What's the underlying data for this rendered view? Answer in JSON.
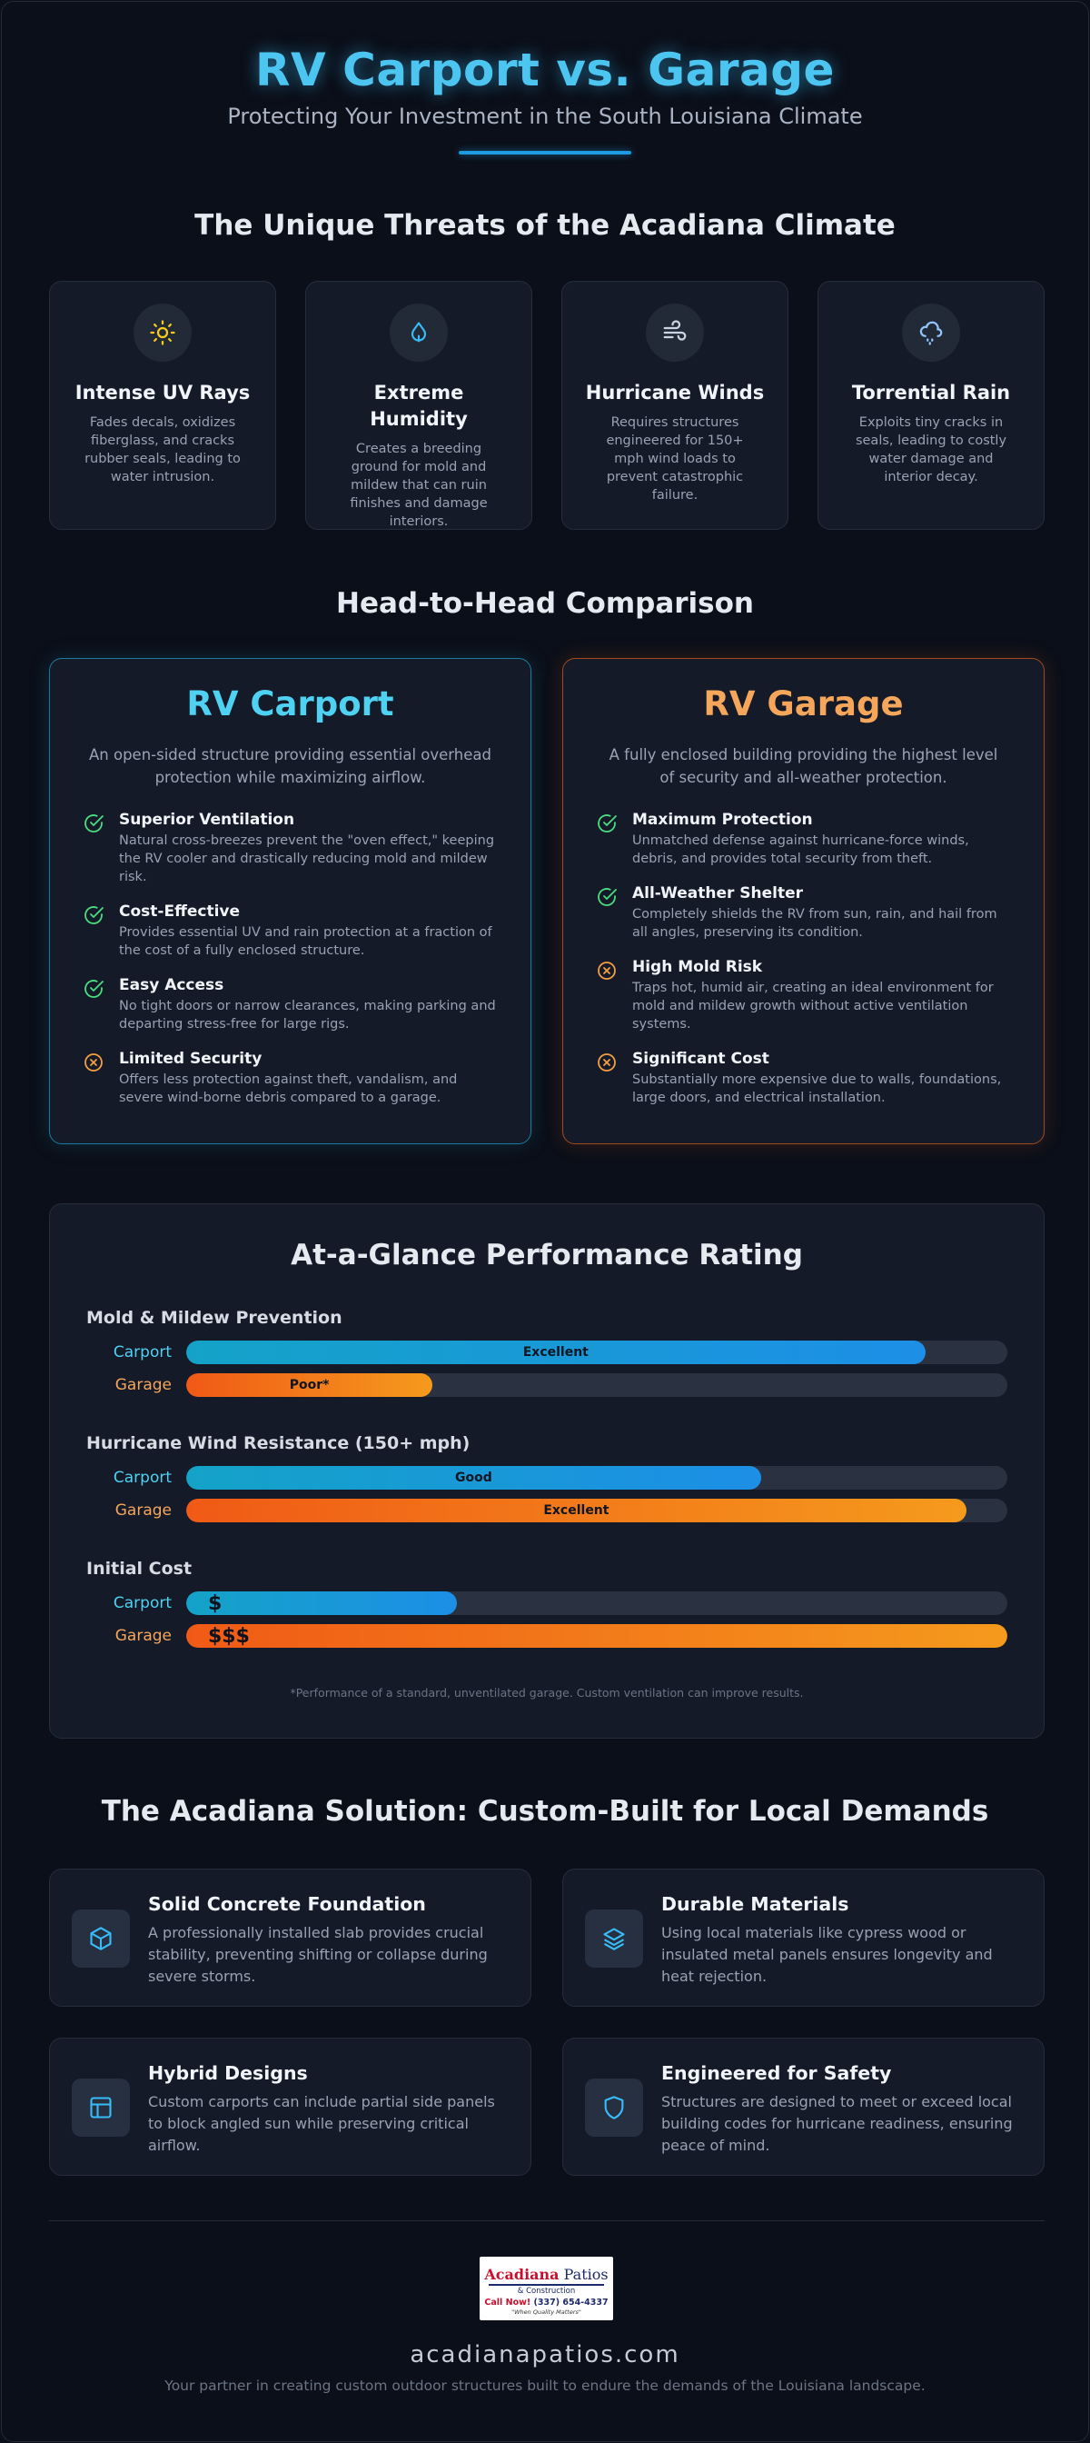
{
  "header": {
    "title": "RV Carport vs. Garage",
    "subtitle": "Protecting Your Investment in the South Louisiana Climate"
  },
  "threats": {
    "title": "The Unique Threats of the Acadiana Climate",
    "items": [
      {
        "icon": "sun-icon",
        "name": "Intense UV Rays",
        "desc": "Fades decals, oxidizes fiberglass, and cracks rubber seals, leading to water intrusion."
      },
      {
        "icon": "droplet-icon",
        "name": "Extreme Humidity",
        "desc": "Creates a breeding ground for mold and mildew that can ruin finishes and damage interiors."
      },
      {
        "icon": "wind-icon",
        "name": "Hurricane Winds",
        "desc": "Requires structures engineered for 150+ mph wind loads to prevent catastrophic failure."
      },
      {
        "icon": "rain-cloud-icon",
        "name": "Torrential Rain",
        "desc": "Exploits tiny cracks in seals, leading to costly water damage and interior decay."
      }
    ]
  },
  "comparison": {
    "title": "Head-to-Head Comparison",
    "carport": {
      "title": "RV Carport",
      "desc": "An open-sided structure providing essential overhead protection while maximizing airflow.",
      "items": [
        {
          "type": "pro",
          "title": "Superior Ventilation",
          "text": "Natural cross-breezes prevent the \"oven effect,\" keeping the RV cooler and drastically reducing mold and mildew risk."
        },
        {
          "type": "pro",
          "title": "Cost-Effective",
          "text": "Provides essential UV and rain protection at a fraction of the cost of a fully enclosed structure."
        },
        {
          "type": "pro",
          "title": "Easy Access",
          "text": "No tight doors or narrow clearances, making parking and departing stress-free for large rigs."
        },
        {
          "type": "con",
          "title": "Limited Security",
          "text": "Offers less protection against theft, vandalism, and severe wind-borne debris compared to a garage."
        }
      ]
    },
    "garage": {
      "title": "RV Garage",
      "desc": "A fully enclosed building providing the highest level of security and all-weather protection.",
      "items": [
        {
          "type": "pro",
          "title": "Maximum Protection",
          "text": "Unmatched defense against hurricane-force winds, debris, and provides total security from theft."
        },
        {
          "type": "pro",
          "title": "All-Weather Shelter",
          "text": "Completely shields the RV from sun, rain, and hail from all angles, preserving its condition."
        },
        {
          "type": "con",
          "title": "High Mold Risk",
          "text": "Traps hot, humid air, creating an ideal environment for mold and mildew growth without active ventilation systems."
        },
        {
          "type": "con",
          "title": "Significant Cost",
          "text": "Substantially more expensive due to walls, foundations, large doors, and electrical installation."
        }
      ]
    }
  },
  "rating": {
    "title": "At-a-Glance Performance Rating",
    "carport_label": "Carport",
    "garage_label": "Garage",
    "metrics": [
      {
        "name": "Mold & Mildew Prevention",
        "carport": {
          "fraction": 0.9,
          "text": "Excellent"
        },
        "garage": {
          "fraction": 0.3,
          "text": "Poor*"
        }
      },
      {
        "name": "Hurricane Wind Resistance (150+ mph)",
        "carport": {
          "fraction": 0.7,
          "text": "Good"
        },
        "garage": {
          "fraction": 0.95,
          "text": "Excellent"
        }
      },
      {
        "name": "Initial Cost",
        "carport": {
          "fraction": 0.33,
          "text": "$"
        },
        "garage": {
          "fraction": 1.0,
          "text": "$$$"
        }
      }
    ],
    "note": "*Performance of a standard, unventilated garage. Custom ventilation can improve results."
  },
  "solution": {
    "title": "The Acadiana Solution: Custom-Built for Local Demands",
    "items": [
      {
        "icon": "cube-icon",
        "title": "Solid Concrete Foundation",
        "text": "A professionally installed slab provides crucial stability, preventing shifting or collapse during severe storms."
      },
      {
        "icon": "layers-icon",
        "title": "Durable Materials",
        "text": "Using local materials like cypress wood or insulated metal panels ensures longevity and heat rejection."
      },
      {
        "icon": "layout-icon",
        "title": "Hybrid Designs",
        "text": "Custom carports can include partial side panels to block angled sun while preserving critical airflow."
      },
      {
        "icon": "shield-icon",
        "title": "Engineered for Safety",
        "text": "Structures are designed to meet or exceed local building codes for hurricane readiness, ensuring peace of mind."
      }
    ]
  },
  "footer": {
    "logo": {
      "name_red": "Acadiana",
      "name_blue": " Patios",
      "sub": "& Construction",
      "call_red": "Call Now!",
      "call_blue": " (337) 654-4337",
      "tagline": "\"When Quality Matters\""
    },
    "site": "acadianapatios.com",
    "tagline": "Your partner in creating custom outdoor structures built to endure the demands of the Louisiana landscape."
  },
  "colors": {
    "carport_accent": "#4fd1f2",
    "garage_accent": "#f5a65b",
    "pro_check": "#4ade80",
    "con_x": "#f59e42"
  }
}
